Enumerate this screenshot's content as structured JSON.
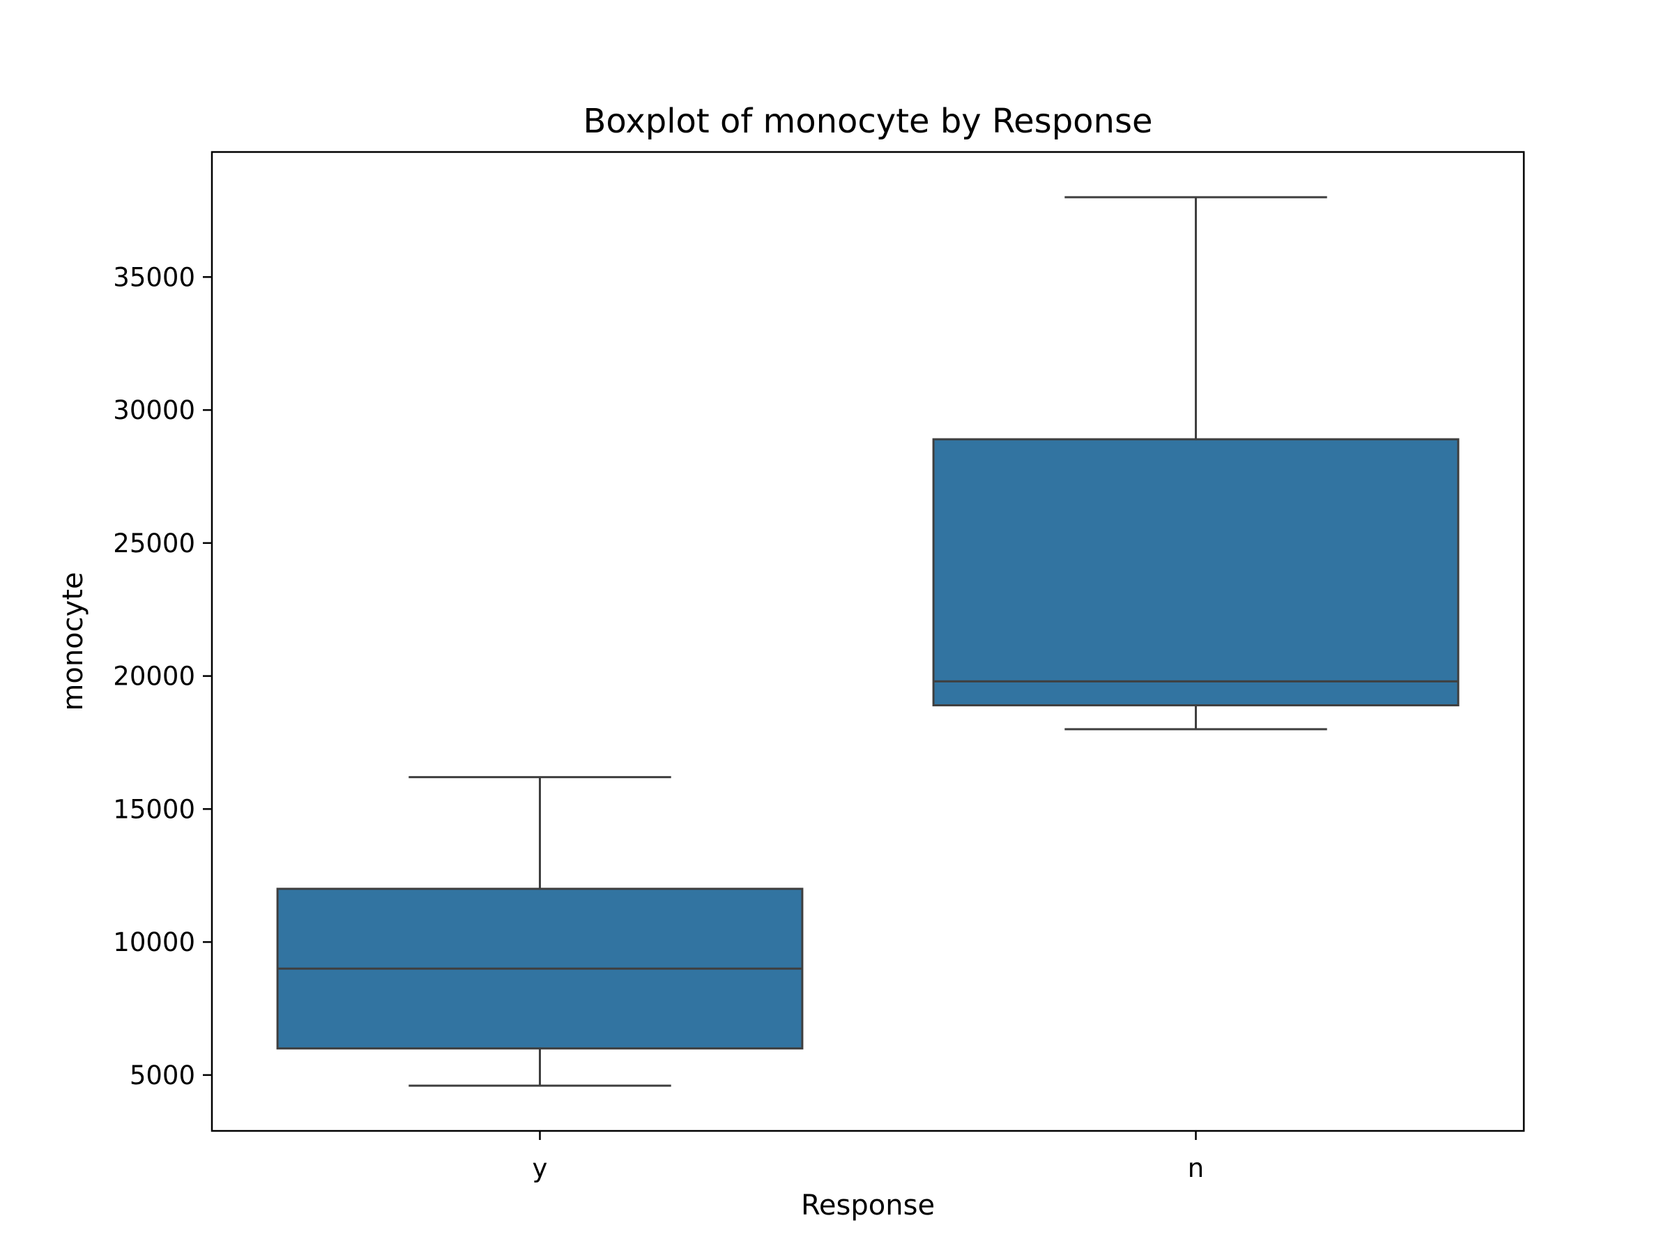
{
  "chart_data": {
    "type": "boxplot",
    "title": "Boxplot of monocyte by Response",
    "xlabel": "Response",
    "ylabel": "monocyte",
    "ylim": [
      2900,
      39700
    ],
    "yticks": [
      5000,
      10000,
      15000,
      20000,
      25000,
      30000,
      35000
    ],
    "categories": [
      "y",
      "n"
    ],
    "grid": false,
    "box_color": "#3274a1",
    "line_color": "#3f3f3f",
    "boxes": [
      {
        "category": "y",
        "whisker_low": 4600,
        "q1": 6000,
        "median": 9000,
        "q3": 12000,
        "whisker_high": 16200
      },
      {
        "category": "n",
        "whisker_low": 18000,
        "q1": 18900,
        "median": 19800,
        "q3": 28900,
        "whisker_high": 38000
      }
    ]
  }
}
